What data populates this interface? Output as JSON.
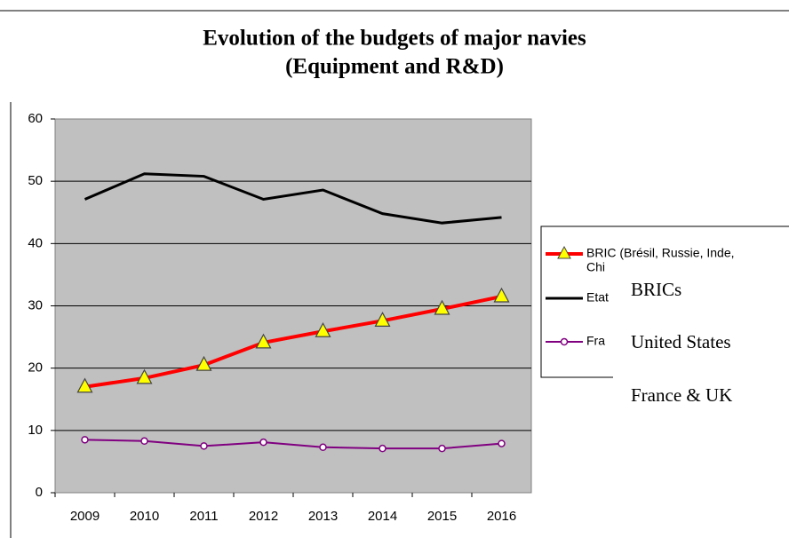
{
  "chart_data": {
    "type": "line",
    "title": [
      "Evolution of the budgets of major navies",
      "(Equipment and R&D)"
    ],
    "categories": [
      "2009",
      "2010",
      "2011",
      "2012",
      "2013",
      "2014",
      "2015",
      "2016"
    ],
    "series": [
      {
        "name": "BRICs",
        "color": "#ff0000",
        "marker": "triangle",
        "values": [
          17.0,
          18.4,
          20.5,
          24.1,
          25.9,
          27.6,
          29.5,
          31.5
        ]
      },
      {
        "name": "United States",
        "color": "#000000",
        "marker": "none",
        "values": [
          47.1,
          51.2,
          50.8,
          47.1,
          48.6,
          44.8,
          43.3,
          44.2
        ]
      },
      {
        "name": "France & UK",
        "color": "#800080",
        "marker": "circle",
        "values": [
          8.5,
          8.3,
          7.5,
          8.1,
          7.3,
          7.1,
          7.1,
          7.9
        ]
      }
    ],
    "legend_fragments": [
      "BRIC (Brésil, Russie, Inde,",
      "Chi",
      "Etat",
      "Fra"
    ],
    "ylim": [
      0,
      60
    ],
    "yticks": [
      0,
      10,
      20,
      30,
      40,
      50,
      60
    ],
    "grid": true
  }
}
